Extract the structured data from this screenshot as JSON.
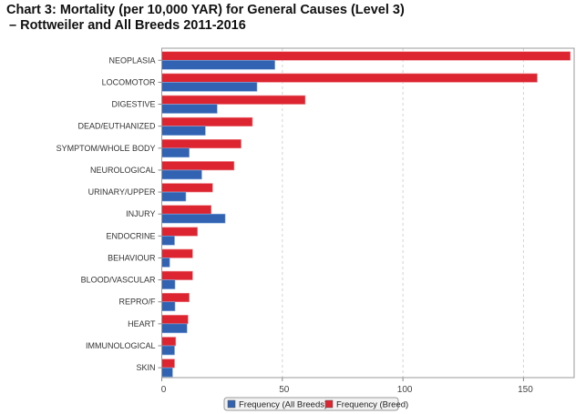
{
  "chart_data": {
    "type": "bar",
    "orientation": "horizontal",
    "title": "Chart 3: Mortality (per 10,000 YAR) for General Causes (Level 3)",
    "subtitle": "–  Rottweiler and All Breeds 2011-2016",
    "xlabel": "",
    "ylabel": "",
    "xlim": [
      0,
      171
    ],
    "xticks": [
      0,
      50,
      100,
      150
    ],
    "grid": true,
    "legend_position": "bottom",
    "categories": [
      "NEOPLASIA",
      "LOCOMOTOR",
      "DIGESTIVE",
      "DEAD/EUTHANIZED",
      "SYMPTOM/WHOLE BODY",
      "NEUROLOGICAL",
      "URINARY/UPPER",
      "INJURY",
      "ENDOCRINE",
      "BEHAVIOUR",
      "BLOOD/VASCULAR",
      "REPRO/F",
      "HEART",
      "IMMUNOLOGICAL",
      "SKIN"
    ],
    "series": [
      {
        "name": "Frequency (Breed)",
        "color": "#dc2530",
        "values": [
          169.4,
          155.7,
          59.5,
          37.6,
          32.9,
          30.0,
          21.1,
          20.5,
          14.8,
          12.8,
          12.8,
          11.4,
          10.9,
          5.8,
          5.3
        ]
      },
      {
        "name": "Frequency (All Breeds)",
        "color": "#3163b2",
        "values": [
          46.9,
          39.5,
          23.0,
          18.1,
          11.4,
          16.6,
          10.0,
          26.3,
          5.3,
          3.3,
          5.5,
          5.5,
          10.5,
          5.3,
          4.5
        ]
      }
    ],
    "legend_order": [
      "Frequency (All Breeds)",
      "Frequency (Breed)"
    ]
  }
}
